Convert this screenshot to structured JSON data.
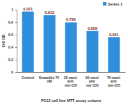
{
  "chart_data": {
    "type": "bar",
    "x_label": "PC12 cell line MTT assay column",
    "y_label": "545 OD",
    "categories": [
      "Control",
      "Scramble 75 nM",
      "25 nmol anti mir-155",
      "50 nmol anti mir-155",
      "75 nmol anti mir-155"
    ],
    "series": [
      {
        "name": "Series 1",
        "color": "#2f8fdc",
        "values": [
          0.971,
          0.912,
          0.796,
          0.659,
          0.561
        ]
      }
    ],
    "ylim": [
      0,
      1
    ],
    "yticks": [
      0,
      0.2,
      0.4,
      0.6,
      0.8,
      1
    ],
    "grid": false,
    "legend": "top-right",
    "data_labels": true
  }
}
